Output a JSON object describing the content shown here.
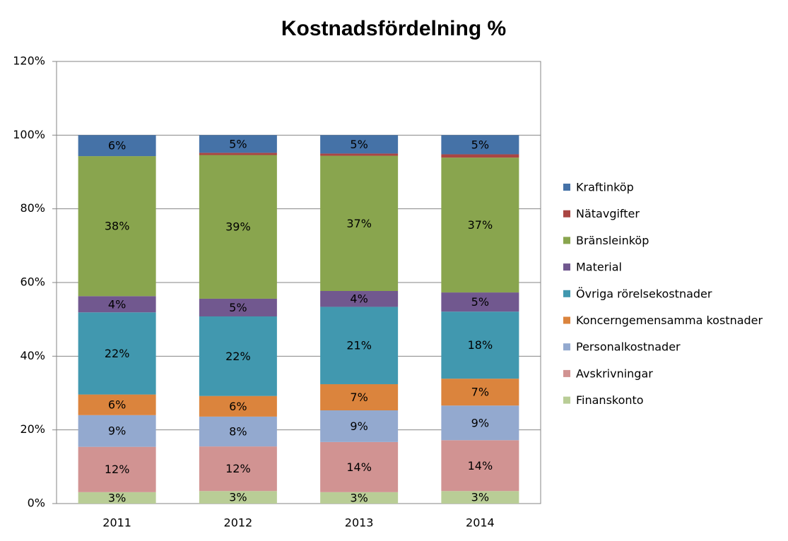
{
  "chart_data": {
    "type": "stacked_bar",
    "title": "Kostnadsfördelning %",
    "categories": [
      "2011",
      "2012",
      "2013",
      "2014"
    ],
    "series": [
      {
        "name": "Finanskonto",
        "color": "#b9cd96",
        "values": [
          3.1,
          3.4,
          3.1,
          3.4
        ],
        "value_labels": [
          "3%",
          "3%",
          "3%",
          "3%"
        ]
      },
      {
        "name": "Avskrivningar",
        "color": "#d19392",
        "values": [
          12.3,
          12.1,
          13.6,
          13.8
        ],
        "value_labels": [
          "12%",
          "12%",
          "14%",
          "14%"
        ]
      },
      {
        "name": "Personalkostnader",
        "color": "#93a9cf",
        "values": [
          8.6,
          8.1,
          8.6,
          9.4
        ],
        "value_labels": [
          "9%",
          "8%",
          "9%",
          "9%"
        ]
      },
      {
        "name": "Koncerngemensamma kostnader",
        "color": "#db843d",
        "values": [
          5.6,
          5.6,
          7.1,
          7.3
        ],
        "value_labels": [
          "6%",
          "6%",
          "7%",
          "7%"
        ]
      },
      {
        "name": "Övriga rörelsekostnader",
        "color": "#4198af",
        "values": [
          22.3,
          21.6,
          21.0,
          18.2
        ],
        "value_labels": [
          "22%",
          "22%",
          "21%",
          "18%"
        ]
      },
      {
        "name": "Material",
        "color": "#71588f",
        "values": [
          4.4,
          4.8,
          4.3,
          5.2
        ],
        "value_labels": [
          "4%",
          "5%",
          "4%",
          "5%"
        ]
      },
      {
        "name": "Bränsleinköp",
        "color": "#89a54e",
        "values": [
          38.0,
          39.0,
          36.7,
          36.6
        ],
        "value_labels": [
          "38%",
          "39%",
          "37%",
          "37%"
        ]
      },
      {
        "name": "Nätavgifter",
        "color": "#aa4643",
        "values": [
          0,
          0.6,
          0.6,
          0.9
        ]
      },
      {
        "name": "Kraftinköp",
        "color": "#4572a7",
        "values": [
          5.7,
          4.8,
          5.0,
          5.2
        ],
        "value_labels": [
          "6%",
          "5%",
          "5%",
          "5%"
        ]
      }
    ],
    "ylim": [
      0,
      120
    ],
    "yticks": [
      {
        "value": 0,
        "label": "0%"
      },
      {
        "value": 20,
        "label": "20%"
      },
      {
        "value": 40,
        "label": "40%"
      },
      {
        "value": 60,
        "label": "60%"
      },
      {
        "value": 80,
        "label": "80%"
      },
      {
        "value": 100,
        "label": "100%"
      },
      {
        "value": 120,
        "label": "120%"
      }
    ],
    "grid": true,
    "legend": "right"
  }
}
